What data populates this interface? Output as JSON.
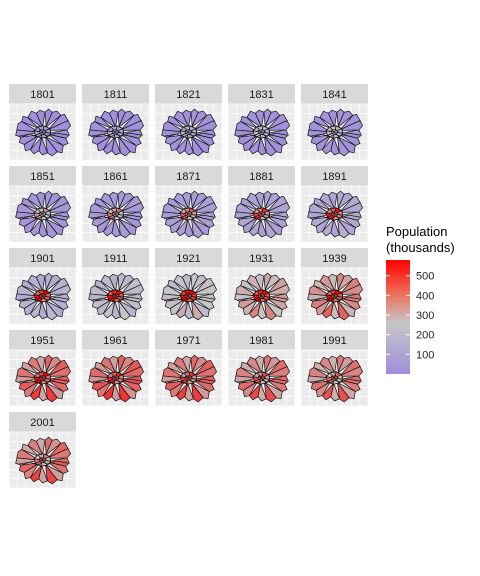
{
  "chart_data": {
    "type": "small-multiples-choropleth",
    "facets": [
      "1801",
      "1811",
      "1821",
      "1831",
      "1841",
      "1851",
      "1861",
      "1871",
      "1881",
      "1891",
      "1901",
      "1911",
      "1921",
      "1931",
      "1939",
      "1951",
      "1961",
      "1971",
      "1981",
      "1991",
      "2001"
    ],
    "facet_layout": {
      "columns": 5,
      "rows": 5
    },
    "legend": {
      "title_line1": "Population",
      "title_line2": "(thousands)",
      "ticks": [
        "100",
        "200",
        "300",
        "400",
        "500"
      ],
      "tick_values": [
        100,
        200,
        300,
        400,
        500
      ],
      "range": [
        0,
        580
      ],
      "placement": "right"
    },
    "color_scale": {
      "low": "#a08fdc",
      "mid": "#c6c6c6",
      "high": "#ff0000"
    },
    "panel_background": "#ebebeb",
    "strip_background": "#d9d9d9",
    "series": [
      {
        "year": "1801",
        "level": 0.02
      },
      {
        "year": "1811",
        "level": 0.03
      },
      {
        "year": "1821",
        "level": 0.04
      },
      {
        "year": "1831",
        "level": 0.05
      },
      {
        "year": "1841",
        "level": 0.07
      },
      {
        "year": "1851",
        "level": 0.1
      },
      {
        "year": "1861",
        "level": 0.14
      },
      {
        "year": "1871",
        "level": 0.18
      },
      {
        "year": "1881",
        "level": 0.24
      },
      {
        "year": "1891",
        "level": 0.29
      },
      {
        "year": "1901",
        "level": 0.36
      },
      {
        "year": "1911",
        "level": 0.45
      },
      {
        "year": "1921",
        "level": 0.52
      },
      {
        "year": "1931",
        "level": 0.6
      },
      {
        "year": "1939",
        "level": 0.66
      },
      {
        "year": "1951",
        "level": 0.72
      },
      {
        "year": "1961",
        "level": 0.74
      },
      {
        "year": "1971",
        "level": 0.72
      },
      {
        "year": "1981",
        "level": 0.68
      },
      {
        "year": "1991",
        "level": 0.67
      },
      {
        "year": "2001",
        "level": 0.7
      }
    ]
  }
}
